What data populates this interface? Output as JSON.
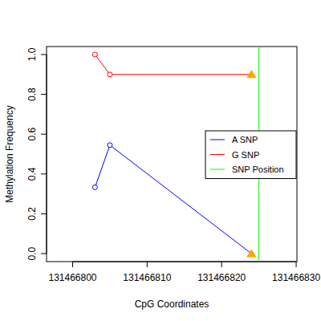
{
  "chart_data": {
    "type": "line",
    "x_label": "CpG Coordinates",
    "y_label": "Methylation Frequency",
    "xlim": [
      131466796.5,
      131466830.1
    ],
    "ylim": [
      -0.04,
      1.04
    ],
    "xticks": [
      131466800,
      131466810,
      131466820,
      131466830
    ],
    "yticks": [
      {
        "value": 0,
        "label": "0.0"
      },
      {
        "value": 0.2,
        "label": "0.2"
      },
      {
        "value": 0.4,
        "label": "0.4"
      },
      {
        "value": 0.6,
        "label": "0.6"
      },
      {
        "value": 0.8,
        "label": "0.8"
      },
      {
        "value": 1,
        "label": "1.0"
      }
    ],
    "legend": "right",
    "series": [
      {
        "name": "A SNP",
        "color": "#0000ff",
        "marker": "circle",
        "x": [
          131466803,
          131466805,
          131466824
        ],
        "values": [
          0.333,
          0.545,
          0.0
        ]
      },
      {
        "name": "G SNP",
        "color": "#ff0000",
        "marker": "circle",
        "x": [
          131466803,
          131466805,
          131466824
        ],
        "values": [
          1.0,
          0.9,
          0.9
        ]
      },
      {
        "name": "SNP Position",
        "type": "vline",
        "color": "#00ff00",
        "x": [
          131466825
        ]
      }
    ]
  }
}
